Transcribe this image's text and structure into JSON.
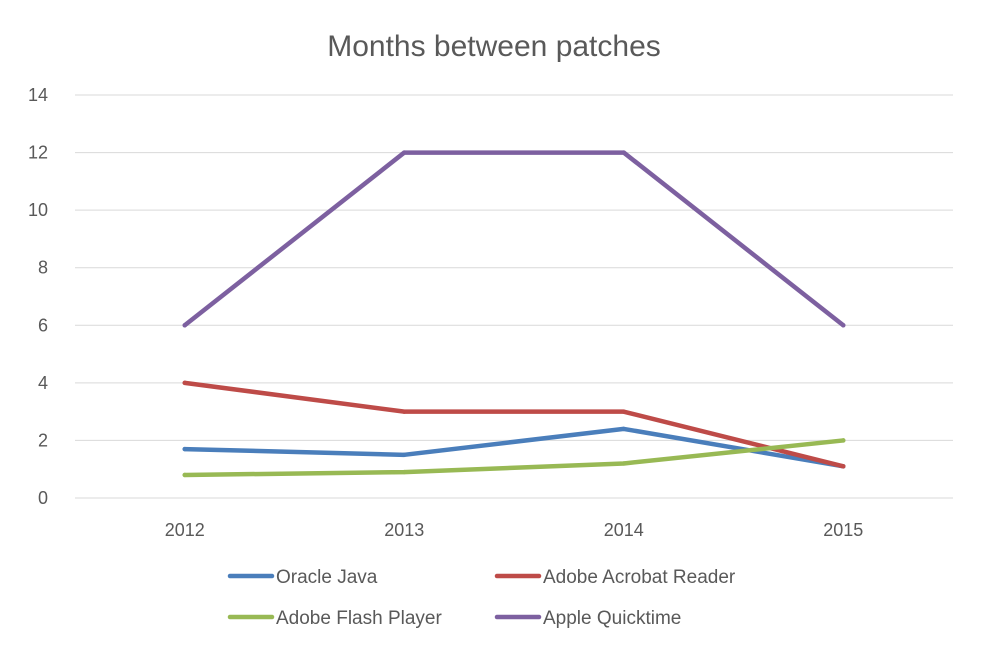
{
  "chart_data": {
    "type": "line",
    "title": "Months between patches",
    "xlabel": "",
    "ylabel": "",
    "categories": [
      "2012",
      "2013",
      "2014",
      "2015"
    ],
    "ylim": [
      0,
      14
    ],
    "yticks": [
      0,
      2,
      4,
      6,
      8,
      10,
      12,
      14
    ],
    "grid": true,
    "legend_position": "bottom",
    "series": [
      {
        "name": "Oracle Java",
        "color": "#4a7ebb",
        "values": [
          1.7,
          1.5,
          2.4,
          1.1
        ]
      },
      {
        "name": "Adobe Acrobat Reader",
        "color": "#be4b48",
        "values": [
          4,
          3,
          3,
          1.1
        ]
      },
      {
        "name": "Adobe Flash Player",
        "color": "#98b954",
        "values": [
          0.8,
          0.9,
          1.2,
          2
        ]
      },
      {
        "name": "Apple Quicktime",
        "color": "#7d60a0",
        "values": [
          6,
          12,
          12,
          6
        ]
      }
    ]
  }
}
